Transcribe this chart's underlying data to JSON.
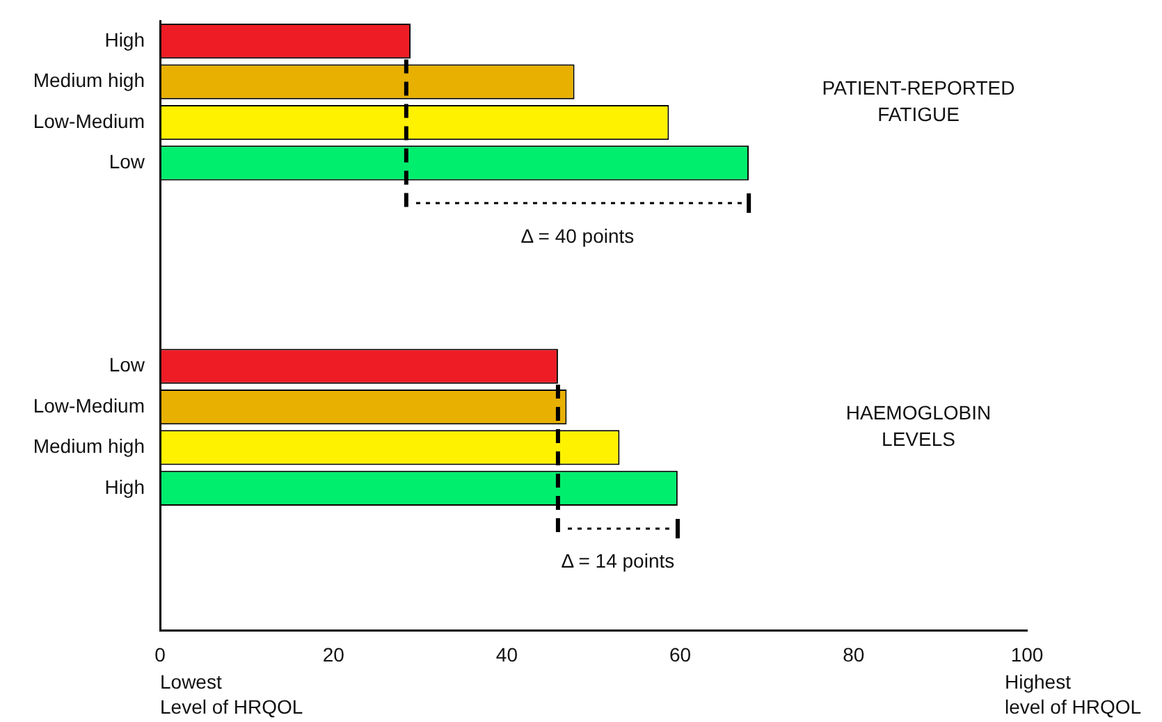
{
  "chart_data": {
    "type": "bar",
    "orientation": "horizontal",
    "categories": [
      "High",
      "Medium high",
      "Low-Medium",
      "Low",
      null,
      null,
      null,
      null,
      "Low",
      "Low-Medium",
      "Medium high",
      "High",
      null,
      null,
      null
    ],
    "values": [
      28.9,
      47.8,
      58.7,
      67.9,
      null,
      null,
      null,
      null,
      45.9,
      46.9,
      53.0,
      59.7,
      null,
      null,
      null
    ],
    "colors": [
      "#ee1c25",
      "#e8b000",
      "#fff200",
      "#00ee6e",
      null,
      null,
      null,
      null,
      "#ee1c25",
      "#e8b000",
      "#fff200",
      "#00ee6e",
      null,
      null,
      null
    ],
    "xlim": [
      0,
      100
    ],
    "xticks": [
      0,
      20,
      40,
      60,
      80,
      100
    ],
    "grid": false,
    "legend": false,
    "ref_lines": [
      {
        "axis": "x",
        "value": 28.4,
        "line_style": "dashed"
      },
      {
        "axis": "x",
        "value": 45.9,
        "line_style": "dashed"
      }
    ],
    "annotations": [
      "PATIENT-REPORTED FATIGUE",
      "HAEMOGLOBIN LEVELS",
      "Δ = 40 points",
      "Δ = 14 points",
      "Lowest Level of HRQOL",
      "Highest level of HRQOL"
    ]
  }
}
